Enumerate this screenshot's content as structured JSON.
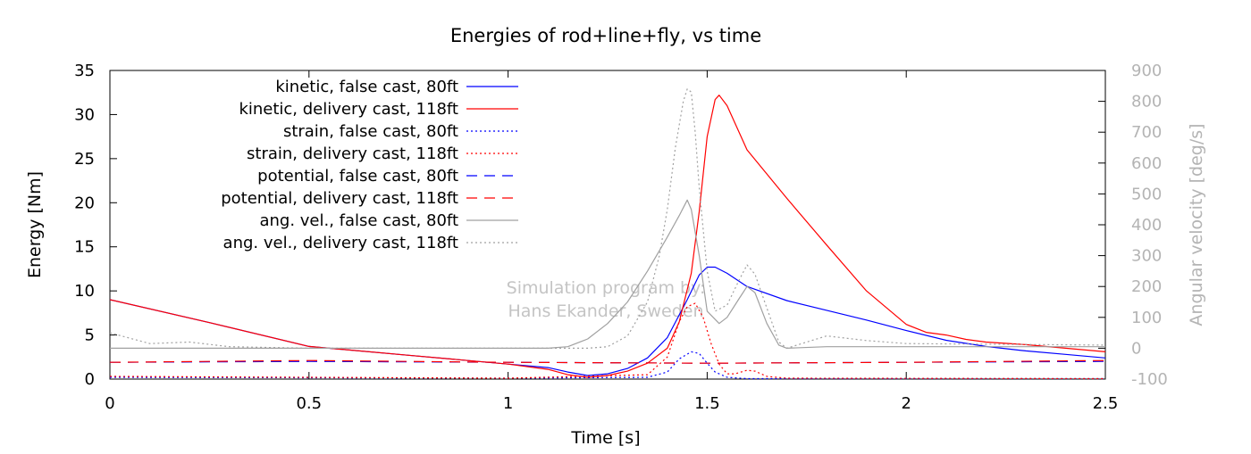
{
  "chart_data": {
    "type": "line",
    "title": "Energies of rod+line+fly, vs time",
    "xlabel": "Time [s]",
    "ylabel": "Energy [Nm]",
    "y2label": "Angular velocity [deg/s]",
    "xlim": [
      0,
      2.5
    ],
    "ylim": [
      0,
      35
    ],
    "y2lim": [
      -100,
      900
    ],
    "xticks": [
      "0",
      "0.5",
      "1",
      "1.5",
      "2",
      "2.5"
    ],
    "yticks": [
      "0",
      "5",
      "10",
      "15",
      "20",
      "25",
      "30",
      "35"
    ],
    "y2ticks": [
      "-100",
      "0",
      "100",
      "200",
      "300",
      "400",
      "500",
      "600",
      "700",
      "800",
      "900"
    ],
    "grid": false,
    "legend_position": "top-left",
    "watermark": [
      "Simulation program by:",
      "Hans Ekander, Sweden"
    ],
    "colors": {
      "blue": "#0000ff",
      "red": "#ff0000",
      "gray": "#a0a0a0",
      "axis2": "#b4b4b4"
    },
    "series": [
      {
        "name": "kinetic, false cast, 80ft",
        "axis": "y",
        "color": "#0000ff",
        "dash": "solid",
        "x": [
          0,
          0.25,
          0.5,
          0.75,
          1.0,
          1.1,
          1.15,
          1.2,
          1.25,
          1.3,
          1.35,
          1.4,
          1.45,
          1.48,
          1.5,
          1.52,
          1.55,
          1.6,
          1.7,
          1.8,
          1.9,
          2.0,
          2.1,
          2.2,
          2.3,
          2.4,
          2.5
        ],
        "values": [
          9.0,
          6.4,
          3.7,
          2.7,
          1.7,
          1.3,
          0.8,
          0.4,
          0.6,
          1.2,
          2.4,
          4.7,
          9.0,
          11.8,
          12.7,
          12.7,
          12.0,
          10.5,
          8.9,
          7.8,
          6.7,
          5.5,
          4.4,
          3.7,
          3.2,
          2.8,
          2.4
        ]
      },
      {
        "name": "kinetic, delivery cast, 118ft",
        "axis": "y",
        "color": "#ff0000",
        "dash": "solid",
        "x": [
          0,
          0.25,
          0.5,
          0.75,
          1.0,
          1.1,
          1.15,
          1.2,
          1.25,
          1.3,
          1.35,
          1.4,
          1.43,
          1.46,
          1.48,
          1.5,
          1.52,
          1.53,
          1.55,
          1.6,
          1.7,
          1.8,
          1.9,
          2.0,
          2.05,
          2.1,
          2.15,
          2.2,
          2.3,
          2.4,
          2.5
        ],
        "values": [
          9.0,
          6.4,
          3.7,
          2.7,
          1.7,
          1.1,
          0.5,
          0.2,
          0.4,
          0.9,
          1.8,
          3.5,
          6.5,
          12.0,
          19.0,
          27.5,
          31.7,
          32.2,
          31.0,
          26.0,
          20.5,
          15.2,
          10.0,
          6.2,
          5.3,
          5.0,
          4.5,
          4.2,
          3.9,
          3.5,
          3.1
        ]
      },
      {
        "name": "strain, false cast, 80ft",
        "axis": "y",
        "color": "#0000ff",
        "dash": "dot",
        "x": [
          0,
          1.0,
          1.35,
          1.4,
          1.43,
          1.46,
          1.48,
          1.5,
          1.52,
          1.55,
          1.6,
          2.5
        ],
        "values": [
          0.2,
          0.1,
          0.2,
          0.8,
          2.3,
          3.1,
          2.9,
          1.8,
          0.8,
          0.2,
          0.05,
          0.05
        ]
      },
      {
        "name": "strain, delivery cast, 118ft",
        "axis": "y",
        "color": "#ff0000",
        "dash": "dot",
        "x": [
          0,
          1.0,
          1.35,
          1.4,
          1.43,
          1.45,
          1.47,
          1.49,
          1.51,
          1.53,
          1.55,
          1.57,
          1.6,
          1.62,
          1.65,
          1.7,
          2.5
        ],
        "values": [
          0.3,
          0.1,
          0.5,
          2.5,
          6.5,
          8.2,
          8.6,
          7.0,
          4.0,
          1.7,
          0.6,
          0.6,
          1.0,
          0.9,
          0.3,
          0.1,
          0.05
        ]
      },
      {
        "name": "potential, false cast, 80ft",
        "axis": "y",
        "color": "#0000ff",
        "dash": "dash",
        "x": [
          0,
          0.5,
          1.0,
          1.5,
          2.0,
          2.5
        ],
        "values": [
          1.9,
          2.0,
          1.9,
          1.8,
          1.9,
          2.0
        ]
      },
      {
        "name": "potential, delivery cast, 118ft",
        "axis": "y",
        "color": "#ff0000",
        "dash": "dash",
        "x": [
          0,
          0.5,
          1.0,
          1.5,
          2.0,
          2.5
        ],
        "values": [
          1.9,
          2.1,
          1.9,
          1.8,
          1.9,
          2.1
        ]
      },
      {
        "name": "ang. vel., false cast, 80ft",
        "axis": "y2",
        "color": "#a0a0a0",
        "dash": "solid",
        "x": [
          0,
          0.5,
          1.0,
          1.1,
          1.15,
          1.2,
          1.25,
          1.3,
          1.35,
          1.4,
          1.43,
          1.45,
          1.46,
          1.48,
          1.5,
          1.53,
          1.55,
          1.58,
          1.6,
          1.62,
          1.65,
          1.68,
          1.7,
          1.8,
          2.0,
          2.2,
          2.5
        ],
        "values": [
          0,
          0,
          0,
          0,
          5,
          30,
          80,
          150,
          250,
          360,
          430,
          480,
          450,
          300,
          120,
          80,
          100,
          160,
          200,
          180,
          80,
          10,
          0,
          5,
          5,
          5,
          5
        ]
      },
      {
        "name": "ang. vel., delivery cast, 118ft",
        "axis": "y2",
        "color": "#a0a0a0",
        "dash": "dot",
        "x": [
          0,
          0.1,
          0.2,
          0.3,
          0.5,
          1.0,
          1.2,
          1.25,
          1.3,
          1.35,
          1.38,
          1.4,
          1.42,
          1.44,
          1.45,
          1.46,
          1.47,
          1.48,
          1.5,
          1.52,
          1.55,
          1.58,
          1.6,
          1.62,
          1.65,
          1.68,
          1.7,
          1.75,
          1.8,
          1.9,
          2.0,
          2.5
        ],
        "values": [
          50,
          15,
          20,
          5,
          0,
          0,
          0,
          5,
          40,
          150,
          300,
          450,
          650,
          800,
          840,
          830,
          700,
          520,
          250,
          120,
          140,
          220,
          270,
          240,
          130,
          20,
          0,
          20,
          40,
          25,
          15,
          10
        ]
      }
    ]
  }
}
